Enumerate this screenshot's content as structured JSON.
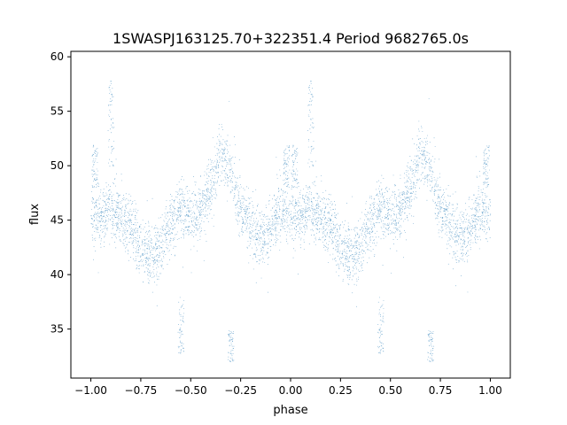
{
  "chart_data": {
    "type": "scatter",
    "title": "1SWASPJ163125.70+322351.4 Period 9682765.0s",
    "xlabel": "phase",
    "ylabel": "flux",
    "xlim": [
      -1.1,
      1.1
    ],
    "ylim": [
      30.5,
      60.5
    ],
    "xticks": [
      -1.0,
      -0.75,
      -0.5,
      -0.25,
      0.0,
      0.25,
      0.5,
      0.75,
      1.0
    ],
    "xtick_labels": [
      "−1.00",
      "−0.75",
      "−0.50",
      "−0.25",
      "0.00",
      "0.25",
      "0.50",
      "0.75",
      "1.00"
    ],
    "yticks": [
      35,
      40,
      45,
      50,
      55,
      60
    ],
    "ytick_labels": [
      "35",
      "40",
      "45",
      "50",
      "55",
      "60"
    ],
    "grid": false,
    "legend": "none",
    "marker_color": "#1f77b4",
    "trend": {
      "phase": [
        0.0,
        0.05,
        0.1,
        0.15,
        0.2,
        0.25,
        0.3,
        0.35,
        0.4,
        0.45,
        0.5,
        0.55,
        0.6,
        0.65,
        0.7,
        0.75,
        0.8,
        0.85,
        0.9,
        0.95,
        1.0
      ],
      "flux": [
        45.5,
        45.5,
        46.0,
        45.0,
        44.5,
        43.0,
        41.5,
        42.5,
        45.0,
        46.0,
        45.5,
        46.0,
        48.0,
        51.0,
        49.5,
        46.0,
        44.0,
        43.5,
        44.5,
        46.0,
        45.5
      ],
      "spread": 1.7
    },
    "outlier_clusters": [
      {
        "phase": 0.1,
        "flux_range": [
          50,
          58
        ]
      },
      {
        "phase": 0.45,
        "flux_range": [
          32.5,
          38
        ]
      },
      {
        "phase": 0.98,
        "flux_range": [
          48,
          52
        ]
      },
      {
        "phase": 0.02,
        "flux_range": [
          48,
          52
        ]
      },
      {
        "phase": 0.7,
        "flux_range": [
          32,
          35
        ]
      }
    ]
  }
}
